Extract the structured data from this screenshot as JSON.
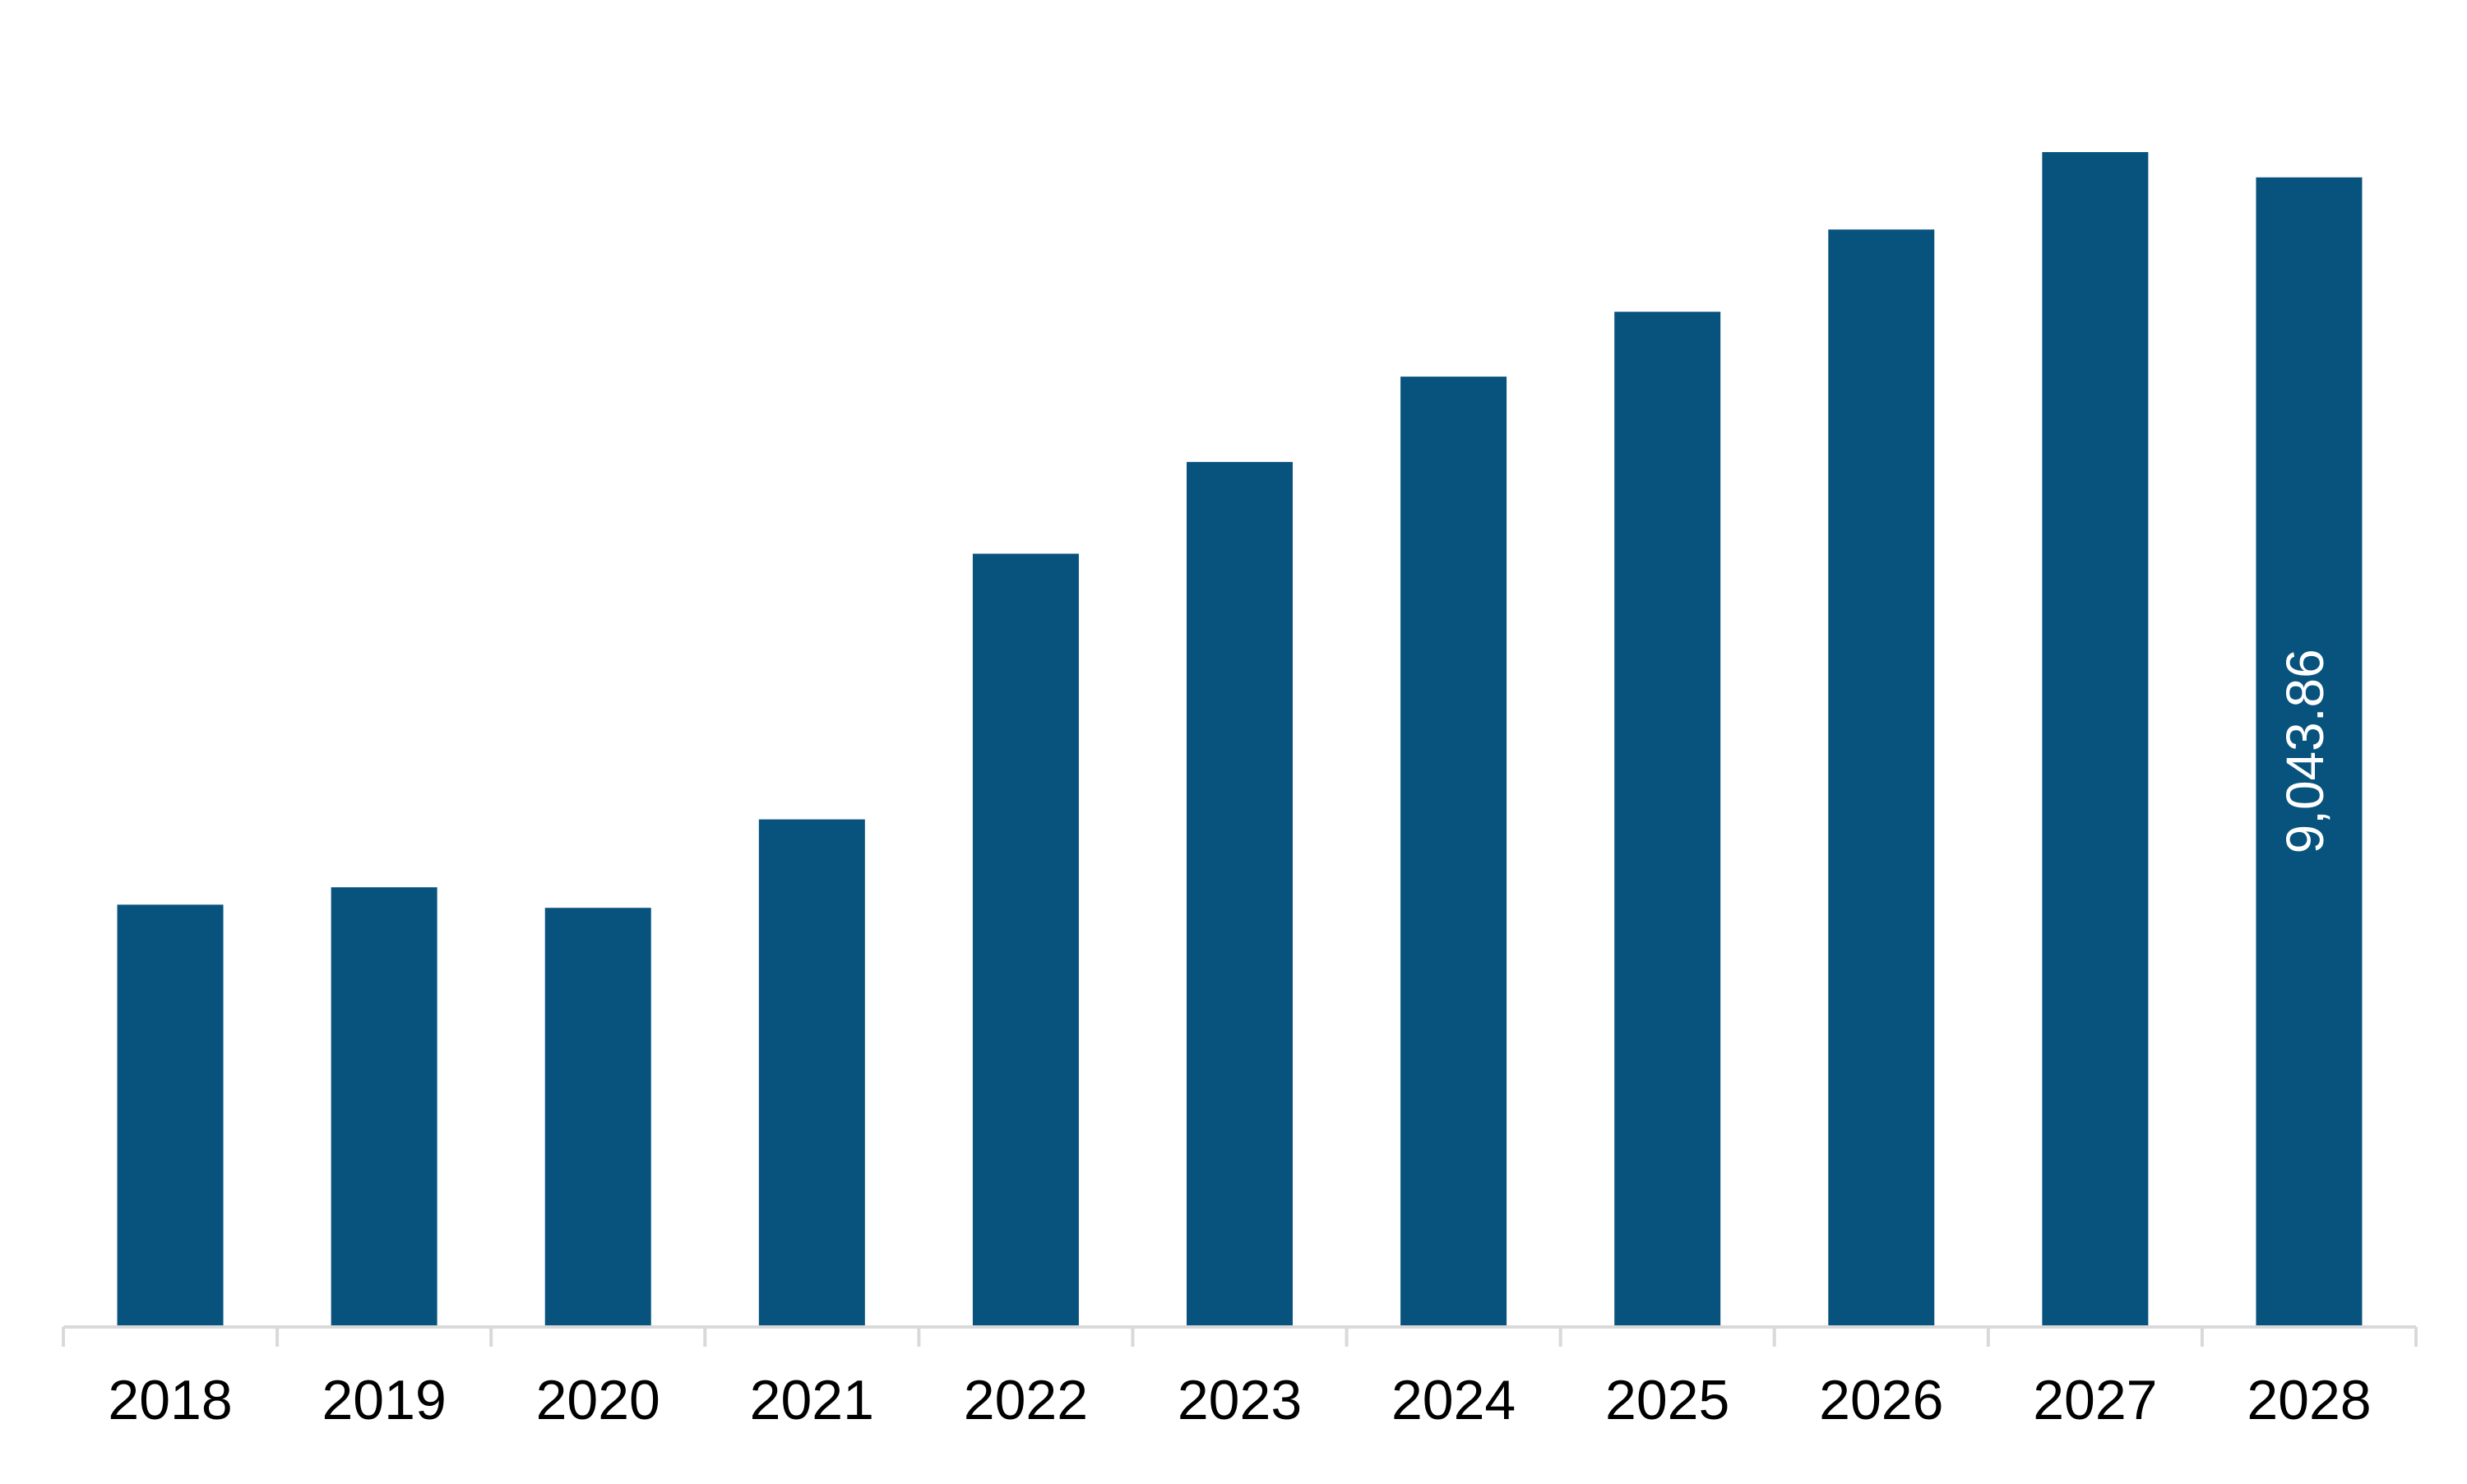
{
  "chart_data": {
    "type": "bar",
    "categories": [
      "2018",
      "2019",
      "2020",
      "2021",
      "2022",
      "2023",
      "2024",
      "2025",
      "2026",
      "2027",
      "2028"
    ],
    "values": [
      3314,
      3451,
      3289,
      3986,
      6079,
      6802,
      7474,
      7985,
      8633,
      9243,
      9043.86
    ],
    "value_labels": [
      null,
      null,
      null,
      null,
      null,
      null,
      null,
      null,
      null,
      null,
      "9,043.86"
    ],
    "color": "#08537e"
  }
}
